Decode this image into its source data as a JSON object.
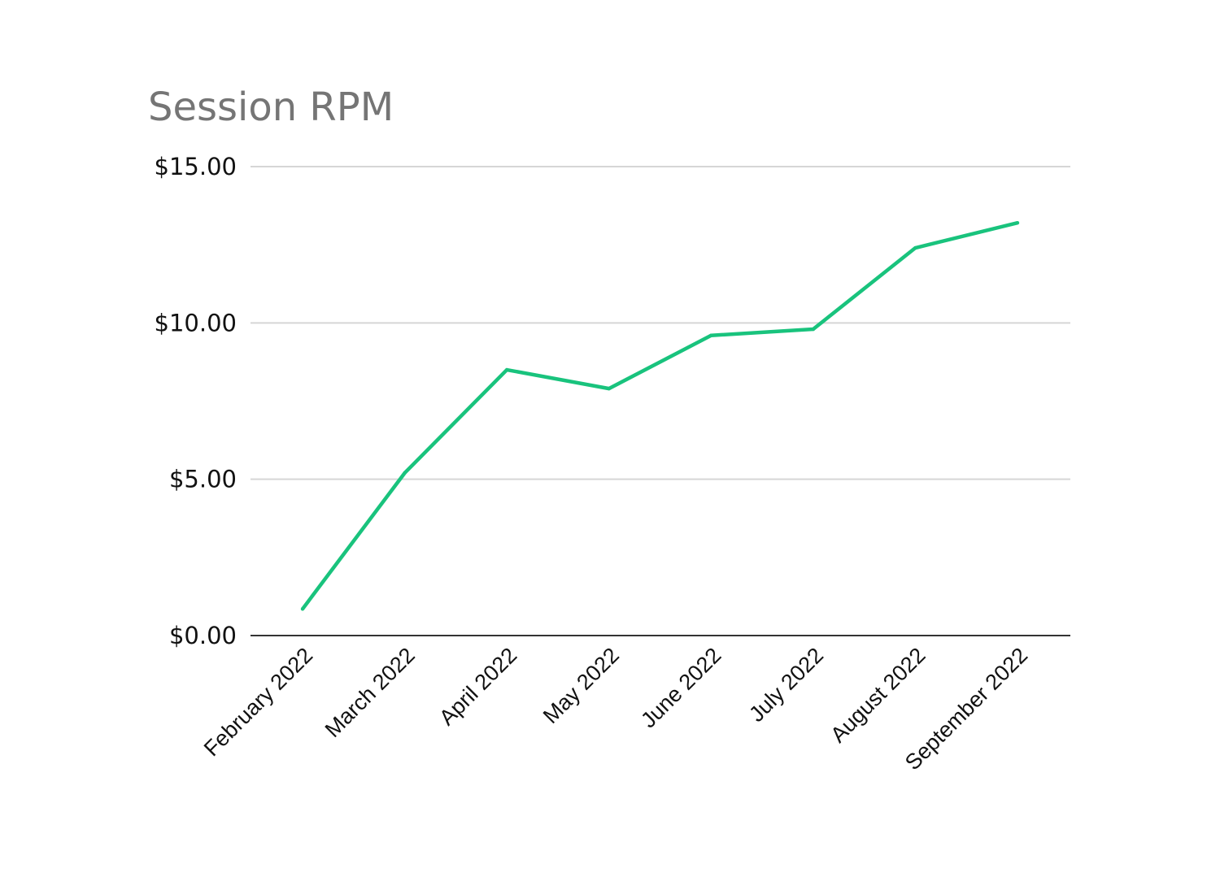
{
  "chart_data": {
    "type": "line",
    "title": "Session RPM",
    "xlabel": "",
    "ylabel": "",
    "categories": [
      "February 2022",
      "March 2022",
      "April 2022",
      "May 2022",
      "June 2022",
      "July 2022",
      "August 2022",
      "September 2022"
    ],
    "series": [
      {
        "values": [
          0.85,
          5.2,
          8.5,
          7.9,
          9.6,
          9.8,
          12.4,
          13.2
        ]
      }
    ],
    "ylim": [
      0,
      15
    ],
    "yticks": [
      0,
      5,
      10,
      15
    ],
    "ytick_labels": [
      "$0.00",
      "$5.00",
      "$10.00",
      "$15.00"
    ],
    "grid": true,
    "legend": "none",
    "colors": {
      "line": "#19c37d",
      "grid": "#d6d6d6",
      "baseline": "#333333",
      "title": "#757575",
      "text": "#111111"
    }
  }
}
